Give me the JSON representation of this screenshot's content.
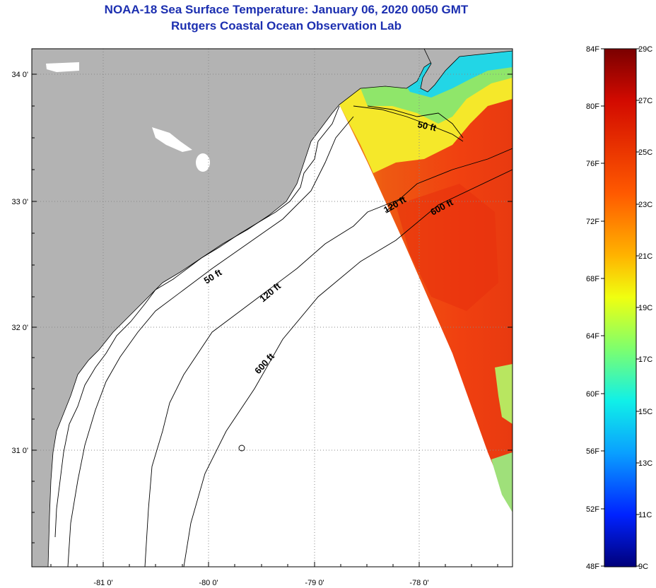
{
  "header": {
    "title": "NOAA-18 Sea Surface Temperature:  January 06, 2020 0050 GMT",
    "subtitle": "Rutgers Coastal Ocean Observation Lab"
  },
  "map": {
    "lat_labels": [
      "34 0'",
      "33 0'",
      "32 0'",
      "31 0'"
    ],
    "lon_labels": [
      "-81 0'",
      "-80 0'",
      "-79 0'",
      "-78 0'"
    ],
    "contour_labels": {
      "offshore_50": "50 ft",
      "offshore_120": "120 ft",
      "offshore_600": "600 ft",
      "inshore_50": "50 ft",
      "inshore_120": "120 ft",
      "inshore_600": "600 ft"
    },
    "colors": {
      "land": "#b3b3b3",
      "no_data": "#ffffff",
      "grid": "#888888"
    }
  },
  "colorbar": {
    "fahrenheit": [
      "84F",
      "80F",
      "76F",
      "72F",
      "68F",
      "64F",
      "60F",
      "56F",
      "52F",
      "48F"
    ],
    "celsius": [
      "29C",
      "27C",
      "25C",
      "23C",
      "21C",
      "19C",
      "17C",
      "15C",
      "13C",
      "11C",
      "9C"
    ]
  }
}
